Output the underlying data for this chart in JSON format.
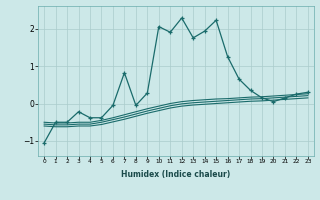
{
  "xlabel": "Humidex (Indice chaleur)",
  "bg_color": "#cce8e8",
  "grid_color": "#aacccc",
  "line_color": "#1a6b6b",
  "xlim": [
    -0.5,
    23.5
  ],
  "ylim": [
    -1.4,
    2.6
  ],
  "xticks": [
    0,
    1,
    2,
    3,
    4,
    5,
    6,
    7,
    8,
    9,
    10,
    11,
    12,
    13,
    14,
    15,
    16,
    17,
    18,
    19,
    20,
    21,
    22,
    23
  ],
  "yticks": [
    -1,
    0,
    1,
    2
  ],
  "main_x": [
    0,
    1,
    2,
    3,
    4,
    5,
    6,
    7,
    8,
    9,
    10,
    11,
    12,
    13,
    14,
    15,
    16,
    17,
    18,
    19,
    20,
    21,
    22,
    23
  ],
  "main_y": [
    -1.05,
    -0.5,
    -0.5,
    -0.22,
    -0.38,
    -0.38,
    -0.05,
    0.82,
    -0.05,
    0.28,
    2.05,
    1.9,
    2.28,
    1.75,
    1.93,
    2.22,
    1.25,
    0.65,
    0.35,
    0.15,
    0.05,
    0.15,
    0.25,
    0.3
  ],
  "line2_x": [
    0,
    1,
    2,
    3,
    4,
    5,
    6,
    7,
    8,
    9,
    10,
    11,
    12,
    13,
    14,
    15,
    16,
    17,
    18,
    19,
    20,
    21,
    22,
    23
  ],
  "line2_y": [
    -0.5,
    -0.52,
    -0.52,
    -0.5,
    -0.5,
    -0.45,
    -0.38,
    -0.3,
    -0.22,
    -0.14,
    -0.07,
    0.0,
    0.05,
    0.08,
    0.1,
    0.12,
    0.13,
    0.15,
    0.17,
    0.18,
    0.2,
    0.22,
    0.24,
    0.26
  ],
  "line3_x": [
    0,
    1,
    2,
    3,
    4,
    5,
    6,
    7,
    8,
    9,
    10,
    11,
    12,
    13,
    14,
    15,
    16,
    17,
    18,
    19,
    20,
    21,
    22,
    23
  ],
  "line3_y": [
    -0.55,
    -0.57,
    -0.57,
    -0.55,
    -0.55,
    -0.5,
    -0.43,
    -0.36,
    -0.28,
    -0.2,
    -0.13,
    -0.06,
    -0.01,
    0.02,
    0.04,
    0.06,
    0.08,
    0.1,
    0.12,
    0.13,
    0.15,
    0.17,
    0.19,
    0.21
  ],
  "line4_x": [
    0,
    1,
    2,
    3,
    4,
    5,
    6,
    7,
    8,
    9,
    10,
    11,
    12,
    13,
    14,
    15,
    16,
    17,
    18,
    19,
    20,
    21,
    22,
    23
  ],
  "line4_y": [
    -0.6,
    -0.62,
    -0.62,
    -0.6,
    -0.6,
    -0.56,
    -0.49,
    -0.42,
    -0.34,
    -0.26,
    -0.19,
    -0.12,
    -0.07,
    -0.04,
    -0.02,
    0.0,
    0.02,
    0.04,
    0.06,
    0.07,
    0.09,
    0.11,
    0.13,
    0.15
  ]
}
